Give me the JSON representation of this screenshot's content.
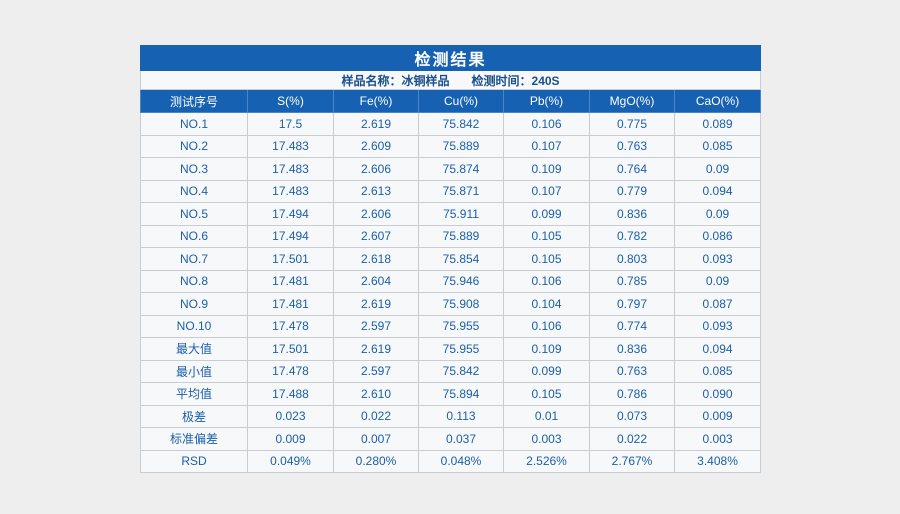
{
  "table": {
    "title": "检测结果",
    "subtitle": {
      "sample": "样品名称：冰铜样品",
      "time": "检测时间：240S"
    },
    "headers": [
      "测试序号",
      "S(%)",
      "Fe(%)",
      "Cu(%)",
      "Pb(%)",
      "MgO(%)",
      "CaO(%)"
    ],
    "rows": [
      [
        "NO.1",
        "17.5",
        "2.619",
        "75.842",
        "0.106",
        "0.775",
        "0.089"
      ],
      [
        "NO.2",
        "17.483",
        "2.609",
        "75.889",
        "0.107",
        "0.763",
        "0.085"
      ],
      [
        "NO.3",
        "17.483",
        "2.606",
        "75.874",
        "0.109",
        "0.764",
        "0.09"
      ],
      [
        "NO.4",
        "17.483",
        "2.613",
        "75.871",
        "0.107",
        "0.779",
        "0.094"
      ],
      [
        "NO.5",
        "17.494",
        "2.606",
        "75.911",
        "0.099",
        "0.836",
        "0.09"
      ],
      [
        "NO.6",
        "17.494",
        "2.607",
        "75.889",
        "0.105",
        "0.782",
        "0.086"
      ],
      [
        "NO.7",
        "17.501",
        "2.618",
        "75.854",
        "0.105",
        "0.803",
        "0.093"
      ],
      [
        "NO.8",
        "17.481",
        "2.604",
        "75.946",
        "0.106",
        "0.785",
        "0.09"
      ],
      [
        "NO.9",
        "17.481",
        "2.619",
        "75.908",
        "0.104",
        "0.797",
        "0.087"
      ],
      [
        "NO.10",
        "17.478",
        "2.597",
        "75.955",
        "0.106",
        "0.774",
        "0.093"
      ],
      [
        "最大值",
        "17.501",
        "2.619",
        "75.955",
        "0.109",
        "0.836",
        "0.094"
      ],
      [
        "最小值",
        "17.478",
        "2.597",
        "75.842",
        "0.099",
        "0.763",
        "0.085"
      ],
      [
        "平均值",
        "17.488",
        "2.610",
        "75.894",
        "0.105",
        "0.786",
        "0.090"
      ],
      [
        "极差",
        "0.023",
        "0.022",
        "0.113",
        "0.01",
        "0.073",
        "0.009"
      ],
      [
        "标准偏差",
        "0.009",
        "0.007",
        "0.037",
        "0.003",
        "0.022",
        "0.003"
      ],
      [
        "RSD",
        "0.049%",
        "0.280%",
        "0.048%",
        "2.526%",
        "2.767%",
        "3.408%"
      ]
    ]
  }
}
